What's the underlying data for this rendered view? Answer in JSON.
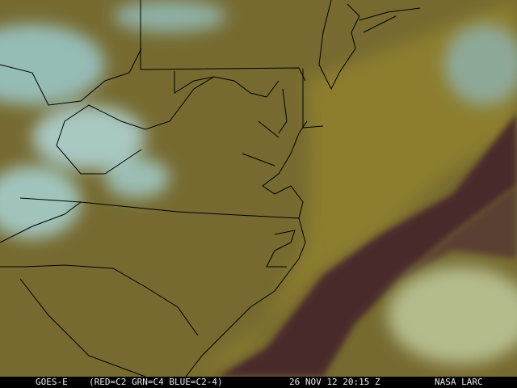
{
  "caption": {
    "satellite": "GOES-E",
    "channels": "(RED=C2 GRN=C4 BLUE=C2-4)",
    "datetime": "26 NOV 12 20:15 Z",
    "source": "NASA LARC"
  },
  "colors": {
    "land": "#766a30",
    "cloud": "#9cc2bc",
    "ocean_dark": "#4a2a2a",
    "coastal_water": "#8a7c2c",
    "boundaries": "#000000"
  }
}
